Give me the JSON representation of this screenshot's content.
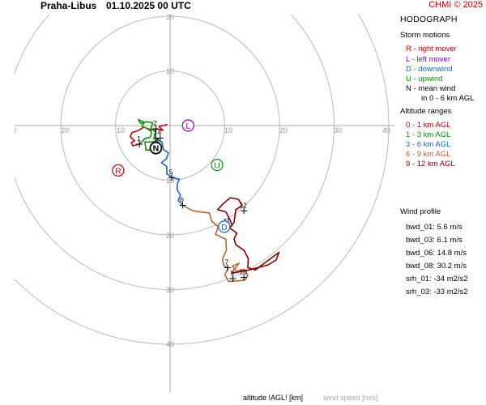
{
  "header": {
    "station": "Praha-Libus",
    "time": "01.10.2025 00 UTC",
    "copyright": "CHMI © 2025"
  },
  "footer": {
    "altitude_label": "altitude !AGL! [km]",
    "wind_speed_label": "wind speed [m/s]"
  },
  "panel": {
    "title": "HODOGRAPH",
    "storm_motions_title": "Storm motions",
    "storm_motions": [
      {
        "text": "R - right mover",
        "color": "#cc0000"
      },
      {
        "text": "L - left mover",
        "color": "#9900cc"
      },
      {
        "text": "D - downwind",
        "color": "#1a66cc"
      },
      {
        "text": "U - upwind",
        "color": "#009900"
      },
      {
        "text": "N - mean wind",
        "color": "#000000"
      },
      {
        "text": "in 0 - 6 km AGL",
        "color": "#000000"
      }
    ],
    "altitude_ranges_title": "Altitude ranges",
    "altitude_ranges": [
      {
        "text": "0 - 1 km AGL",
        "color": "#cc0000"
      },
      {
        "text": "1 - 3 km AGL",
        "color": "#009900"
      },
      {
        "text": "3 - 6 km AGL",
        "color": "#1a66cc"
      },
      {
        "text": "6 - 9 km AGL",
        "color": "#c0622d"
      },
      {
        "text": "9 - 12 km AGL",
        "color": "#8b0000"
      }
    ],
    "wind_profile_title": "Wind profile",
    "wind_profile": [
      "bwd_01: 5.6 m/s",
      "bwd_03: 6.1 m/s",
      "bwd_06: 14.8 m/s",
      "bwd_08: 30.2 m/s",
      "srh_01: -34 m2/s2",
      "srh_03: -33 m2/s2"
    ]
  },
  "chart_data": {
    "type": "hodograph",
    "rings": [
      10,
      20,
      30,
      40
    ],
    "ring_labels": [
      "10",
      "20",
      "30",
      "40"
    ],
    "axis_tick_labels": [
      "0",
      "10",
      "20",
      "40",
      "10",
      "20",
      "30",
      "40",
      "10",
      "20",
      "30",
      "40",
      "20"
    ],
    "segments": [
      {
        "range": "0 - 1 km AGL",
        "color": "#cc0000",
        "points": [
          [
            -0.5,
            0.2
          ],
          [
            -1.3,
            0.0
          ],
          [
            -2,
            -0.2
          ],
          [
            -1.3,
            -0.9
          ],
          [
            -2.5,
            -0.6
          ],
          [
            -3.5,
            -0.8
          ],
          [
            -4.8,
            -0.3
          ],
          [
            -5.8,
            -0.9
          ],
          [
            -7,
            -1.3
          ],
          [
            -7.3,
            -2
          ],
          [
            -6.5,
            -2.8
          ],
          [
            -7.1,
            -3.1
          ],
          [
            -6.8,
            -3.7
          ],
          [
            -5.6,
            -3.4
          ]
        ]
      },
      {
        "range": "1 - 3 km AGL",
        "color": "#009900",
        "points": [
          [
            -5.6,
            -3.4
          ],
          [
            -4.6,
            -2.4
          ],
          [
            -3.6,
            -2.1
          ],
          [
            -3.4,
            -1.1
          ],
          [
            -4.3,
            -0.5
          ],
          [
            -5.2,
            -0.1
          ],
          [
            -4.7,
            0.6
          ],
          [
            -5.8,
            1.1
          ],
          [
            -5.4,
            0.4
          ],
          [
            -4.3,
            0.7
          ],
          [
            -3.2,
            0.5
          ],
          [
            -3.5,
            -0.5
          ],
          [
            -2.6,
            -1.1
          ],
          [
            -2.9,
            -2.1
          ],
          [
            -2.2,
            -2.7
          ],
          [
            -3.4,
            -3.0
          ],
          [
            -4.6,
            -3.0
          ],
          [
            -4.4,
            -4.5
          ],
          [
            -3.3,
            -4.4
          ],
          [
            -3.4,
            -3.4
          ],
          [
            -2.2,
            -3.0
          ],
          [
            -2.6,
            -2.4
          ]
        ]
      },
      {
        "range": "3 - 6 km AGL",
        "color": "#1a66cc",
        "points": [
          [
            -2.6,
            -2.4
          ],
          [
            -1.5,
            -3.0
          ],
          [
            -1.2,
            -4.4
          ],
          [
            -0.3,
            -5.0
          ],
          [
            -0.7,
            -6.1
          ],
          [
            -1.6,
            -6.8
          ],
          [
            -0.6,
            -7.5
          ],
          [
            -0.6,
            -8.8
          ],
          [
            0.3,
            -9.5
          ],
          [
            1.7,
            -9.8
          ],
          [
            1.3,
            -10.7
          ],
          [
            1.3,
            -11.8
          ],
          [
            1.9,
            -12.7
          ],
          [
            1.5,
            -13.7
          ],
          [
            2.3,
            -14.6
          ]
        ]
      },
      {
        "range": "6 - 9 km AGL",
        "color": "#c0622d",
        "points": [
          [
            2.3,
            -14.6
          ],
          [
            4.2,
            -15.6
          ],
          [
            7.2,
            -16.0
          ],
          [
            7.6,
            -17.5
          ],
          [
            8.8,
            -18.5
          ],
          [
            8.3,
            -19.9
          ],
          [
            10.2,
            -20.8
          ],
          [
            10.3,
            -22.8
          ],
          [
            9.6,
            -24.4
          ],
          [
            9.8,
            -25.6
          ],
          [
            10.6,
            -26.1
          ],
          [
            10.0,
            -27.3
          ],
          [
            10.7,
            -28.5
          ],
          [
            12.5,
            -28.4
          ],
          [
            13.8,
            -28.2
          ],
          [
            14.2,
            -27.3
          ],
          [
            13.4,
            -26.3
          ],
          [
            12.1,
            -26.7
          ],
          [
            11.4,
            -25.7
          ],
          [
            12.6,
            -25.2
          ],
          [
            11.9,
            -26.1
          ],
          [
            11.3,
            -27.0
          ]
        ]
      },
      {
        "range": "9 - 12 km AGL",
        "color": "#8b0000",
        "points": [
          [
            11.3,
            -27.0
          ],
          [
            14.5,
            -26.4
          ],
          [
            17.9,
            -25.5
          ],
          [
            19.4,
            -24.6
          ],
          [
            19.9,
            -23.2
          ],
          [
            15.6,
            -26.4
          ],
          [
            14.2,
            -26.0
          ],
          [
            14.3,
            -24.3
          ],
          [
            13.5,
            -22.8
          ],
          [
            12.0,
            -21.8
          ],
          [
            11.7,
            -20.7
          ],
          [
            12.2,
            -19.7
          ],
          [
            10.9,
            -18.7
          ],
          [
            11.7,
            -17.7
          ],
          [
            12.0,
            -15.4
          ],
          [
            13.2,
            -14.6
          ],
          [
            12.5,
            -13.5
          ],
          [
            11.0,
            -13.2
          ],
          [
            9.6,
            -14.4
          ],
          [
            8.7,
            -15.4
          ],
          [
            10.2,
            -15.8
          ],
          [
            11.0,
            -17.4
          ],
          [
            11.4,
            -18.4
          ]
        ]
      }
    ],
    "altitude_markers": [
      {
        "label": "1",
        "u": -5.6,
        "v": -3.4
      },
      {
        "label": "2",
        "u": -2.6,
        "v": -0.6
      },
      {
        "label": "3",
        "u": -2.6,
        "v": -2.4
      },
      {
        "label": "4",
        "u": -1.8,
        "v": -2.3
      },
      {
        "label": "5",
        "u": 0.3,
        "v": -9.5
      },
      {
        "label": "6",
        "u": 2.3,
        "v": -14.6
      },
      {
        "label": "7",
        "u": 10.5,
        "v": -26.0
      },
      {
        "label": "9",
        "u": 11.5,
        "v": -28.0
      },
      {
        "label": "10",
        "u": 13.5,
        "v": -27.8
      },
      {
        "label": "11",
        "u": 10.5,
        "v": -18.5
      },
      {
        "label": "12",
        "u": 13.5,
        "v": -15.6
      }
    ],
    "storm_motion_markers": [
      {
        "label": "R",
        "color": "#cc0000",
        "u": -9.5,
        "v": -8.2
      },
      {
        "label": "L",
        "color": "#9900cc",
        "u": 3.3,
        "v": 0.0
      },
      {
        "label": "D",
        "color": "#1a66cc",
        "u": 9.9,
        "v": -18.5
      },
      {
        "label": "U",
        "color": "#009900",
        "u": 8.6,
        "v": -7.2
      },
      {
        "label": "N",
        "color": "#000000",
        "u": -2.6,
        "v": -4.1
      }
    ]
  }
}
